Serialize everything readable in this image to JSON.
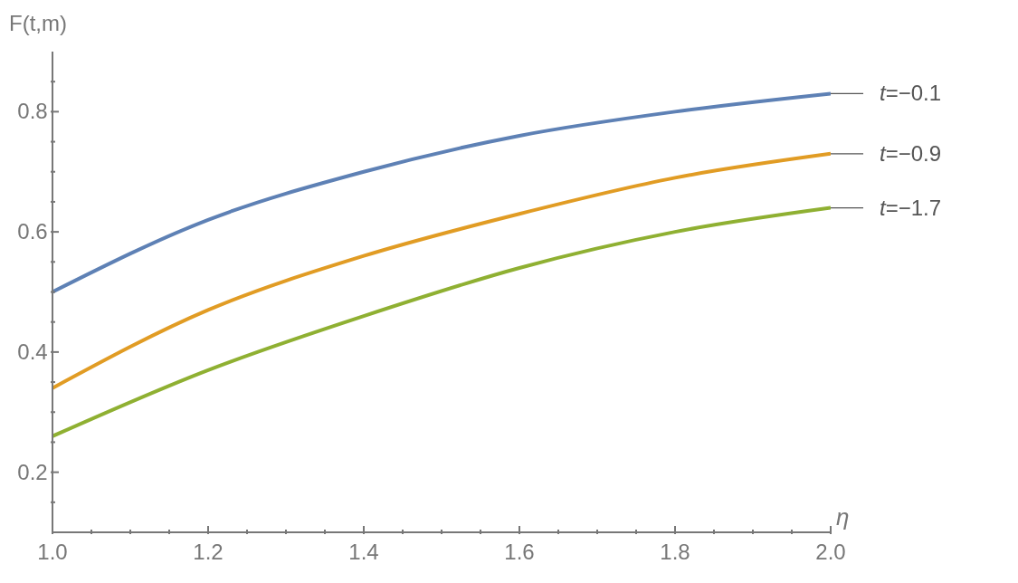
{
  "chart_data": {
    "type": "line",
    "xlabel": "η",
    "ylabel": "F(t,m)",
    "x": [
      1.0,
      1.2,
      1.4,
      1.6,
      1.8,
      2.0
    ],
    "series": [
      {
        "name": "t=−0.1",
        "color": "#5e81b5",
        "values": [
          0.5,
          0.62,
          0.7,
          0.76,
          0.8,
          0.83
        ]
      },
      {
        "name": "t=−0.9",
        "color": "#e19c24",
        "values": [
          0.34,
          0.47,
          0.56,
          0.63,
          0.69,
          0.73
        ]
      },
      {
        "name": "t=−1.7",
        "color": "#8fb032",
        "values": [
          0.26,
          0.37,
          0.46,
          0.54,
          0.6,
          0.64
        ]
      }
    ],
    "xlim": [
      1.0,
      2.0
    ],
    "ylim": [
      0.1,
      0.9
    ],
    "xticks": [
      {
        "value": 1,
        "label": "1.0"
      },
      {
        "value": 1.05,
        "label": null
      },
      {
        "value": 1.1,
        "label": null
      },
      {
        "value": 1.15,
        "label": null
      },
      1.2,
      {
        "value": 1.25,
        "label": null
      },
      {
        "value": 1.3,
        "label": null
      },
      {
        "value": 1.35,
        "label": null
      },
      1.4,
      {
        "value": 1.45,
        "label": null
      },
      {
        "value": 1.5,
        "label": null
      },
      {
        "value": 1.55,
        "label": null
      },
      1.6,
      {
        "value": 1.65,
        "label": null
      },
      {
        "value": 1.7,
        "label": null
      },
      {
        "value": 1.75,
        "label": null
      },
      1.8,
      {
        "value": 1.85,
        "label": null
      },
      {
        "value": 1.9,
        "label": null
      },
      {
        "value": 1.95,
        "label": null
      },
      {
        "value": 2,
        "label": "2.0"
      }
    ],
    "yticks": [
      {
        "value": 0.15,
        "label": null
      },
      0.2,
      {
        "value": 0.25,
        "label": null
      },
      {
        "value": 0.3,
        "label": null
      },
      {
        "value": 0.35,
        "label": null
      },
      0.4,
      {
        "value": 0.45,
        "label": null
      },
      {
        "value": 0.5,
        "label": null
      },
      {
        "value": 0.55,
        "label": null
      },
      0.6,
      {
        "value": 0.65,
        "label": null
      },
      {
        "value": 0.7,
        "label": null
      },
      {
        "value": 0.75,
        "label": null
      },
      0.8,
      {
        "value": 0.85,
        "label": null
      }
    ],
    "grid": false,
    "legend": false
  }
}
